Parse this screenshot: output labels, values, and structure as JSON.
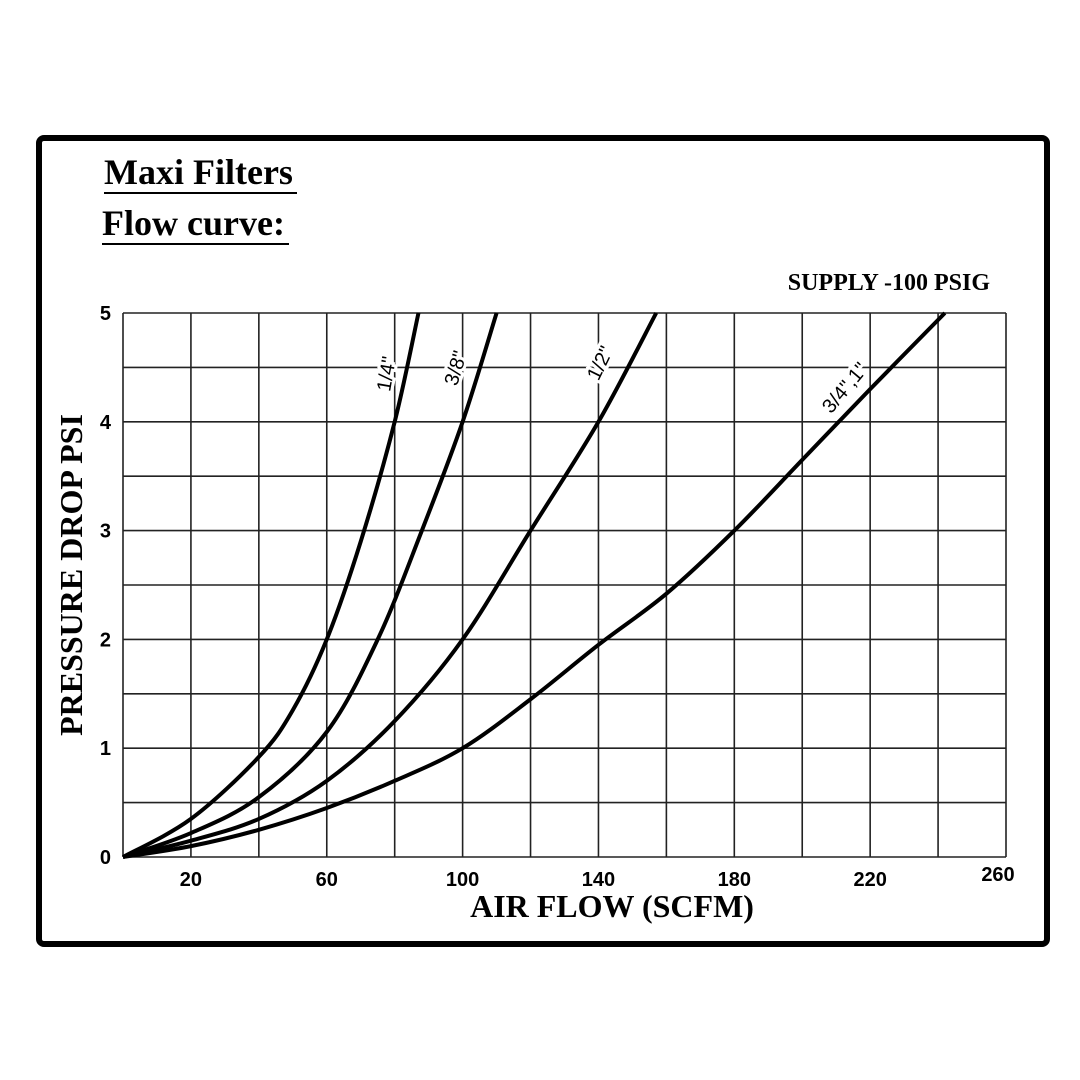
{
  "chart_data": {
    "type": "line",
    "title": "Maxi Filters",
    "subtitle": "Flow curve:",
    "annotation": "SUPPLY -100 PSIG",
    "xlabel": "AIR FLOW (SCFM)",
    "ylabel": "PRESSURE DROP PSI",
    "xlim": [
      0,
      260
    ],
    "ylim": [
      0,
      5
    ],
    "x_grid_step": 20,
    "y_grid_step": 0.5,
    "grid": true,
    "xticks": [
      20,
      60,
      100,
      140,
      180,
      220,
      260
    ],
    "yticks": [
      0,
      1,
      2,
      3,
      4,
      5
    ],
    "series": [
      {
        "name": "1/4\"",
        "points": [
          [
            0,
            0
          ],
          [
            20,
            0.35
          ],
          [
            40,
            0.92
          ],
          [
            50,
            1.35
          ],
          [
            60,
            2.0
          ],
          [
            70,
            2.9
          ],
          [
            80,
            4.0
          ],
          [
            87,
            5.0
          ]
        ]
      },
      {
        "name": "3/8\"",
        "points": [
          [
            0,
            0
          ],
          [
            20,
            0.22
          ],
          [
            40,
            0.55
          ],
          [
            60,
            1.15
          ],
          [
            75,
            2.0
          ],
          [
            88,
            3.0
          ],
          [
            100,
            4.0
          ],
          [
            110,
            5.0
          ]
        ]
      },
      {
        "name": "1/2\"",
        "points": [
          [
            0,
            0
          ],
          [
            20,
            0.15
          ],
          [
            40,
            0.35
          ],
          [
            60,
            0.7
          ],
          [
            80,
            1.25
          ],
          [
            100,
            2.0
          ],
          [
            120,
            3.0
          ],
          [
            140,
            4.0
          ],
          [
            157,
            5.0
          ]
        ]
      },
      {
        "name": "3/4\",1\"",
        "points": [
          [
            0,
            0
          ],
          [
            20,
            0.1
          ],
          [
            40,
            0.25
          ],
          [
            60,
            0.45
          ],
          [
            80,
            0.7
          ],
          [
            100,
            1.0
          ],
          [
            120,
            1.45
          ],
          [
            140,
            1.95
          ],
          [
            160,
            2.42
          ],
          [
            180,
            3.0
          ],
          [
            200,
            3.65
          ],
          [
            220,
            4.3
          ],
          [
            242,
            5.0
          ]
        ]
      }
    ]
  }
}
